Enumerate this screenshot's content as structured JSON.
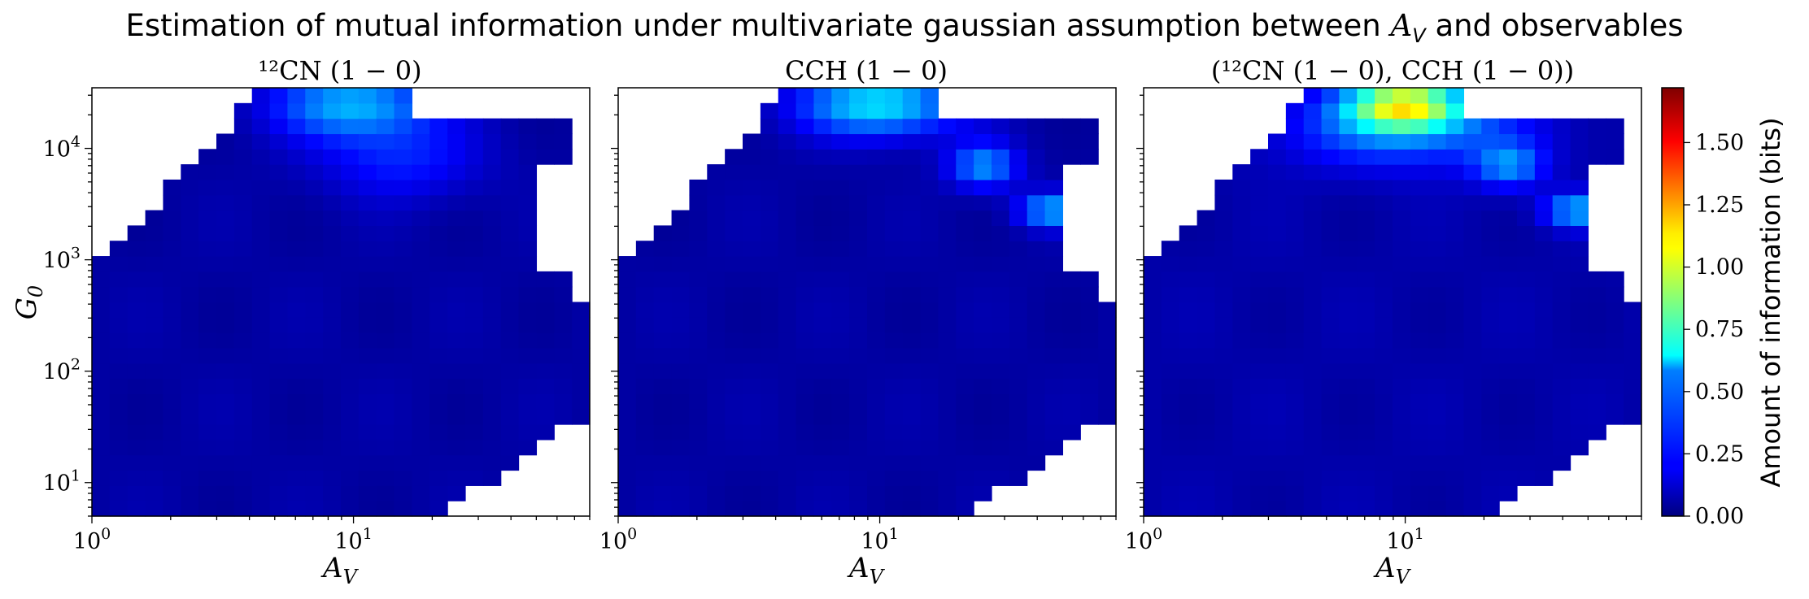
{
  "figure": {
    "suptitle_text": "Estimation of mutual information under multivariate gaussian assumption between",
    "suptitle_var": "A",
    "suptitle_var_sub": "V",
    "suptitle_tail": "and observables"
  },
  "chart_data": [
    {
      "type": "heatmap",
      "title": "¹²CN (1 − 0)",
      "xlabel": "A",
      "xlabel_sub": "V",
      "ylabel": "G",
      "ylabel_sub": "0",
      "x_scale": "log",
      "y_scale": "log",
      "xlim": [
        1,
        80
      ],
      "ylim": [
        5,
        35000
      ],
      "xticks": [
        {
          "value": 1,
          "base": "10",
          "exp": "0"
        },
        {
          "value": 10,
          "base": "10",
          "exp": "1"
        }
      ],
      "yticks": [
        {
          "value": 10,
          "base": "10",
          "exp": "1"
        },
        {
          "value": 100,
          "base": "10",
          "exp": "2"
        },
        {
          "value": 1000,
          "base": "10",
          "exp": "3"
        },
        {
          "value": 10000,
          "base": "10",
          "exp": "4"
        }
      ],
      "hot_spots": [
        {
          "x": 10,
          "y": 25000,
          "value": 0.45,
          "sx": 0.3,
          "sy": 0.3
        },
        {
          "x": 15,
          "y": 8000,
          "value": 0.2,
          "sx": 0.3,
          "sy": 0.35
        }
      ],
      "background_value": 0.06
    },
    {
      "type": "heatmap",
      "title": "CCH (1 − 0)",
      "xlabel": "A",
      "xlabel_sub": "V",
      "x_scale": "log",
      "y_scale": "log",
      "xlim": [
        1,
        80
      ],
      "ylim": [
        5,
        35000
      ],
      "xticks": [
        {
          "value": 1,
          "base": "10",
          "exp": "0"
        },
        {
          "value": 10,
          "base": "10",
          "exp": "1"
        }
      ],
      "hot_spots": [
        {
          "x": 10,
          "y": 25000,
          "value": 0.55,
          "sx": 0.3,
          "sy": 0.28
        },
        {
          "x": 25,
          "y": 7000,
          "value": 0.4,
          "sx": 0.13,
          "sy": 0.2
        },
        {
          "x": 45,
          "y": 2800,
          "value": 0.45,
          "sx": 0.12,
          "sy": 0.15
        }
      ],
      "background_value": 0.06
    },
    {
      "type": "heatmap",
      "title": "(¹²CN (1 − 0), CCH (1 − 0))",
      "xlabel": "A",
      "xlabel_sub": "V",
      "x_scale": "log",
      "y_scale": "log",
      "xlim": [
        1,
        80
      ],
      "ylim": [
        5,
        35000
      ],
      "xticks": [
        {
          "value": 1,
          "base": "10",
          "exp": "0"
        },
        {
          "value": 10,
          "base": "10",
          "exp": "1"
        }
      ],
      "hot_spots": [
        {
          "x": 10,
          "y": 25000,
          "value": 0.85,
          "sx": 0.22,
          "sy": 0.22
        },
        {
          "x": 10,
          "y": 15000,
          "value": 0.35,
          "sx": 0.45,
          "sy": 0.35
        },
        {
          "x": 25,
          "y": 7000,
          "value": 0.35,
          "sx": 0.13,
          "sy": 0.2
        },
        {
          "x": 45,
          "y": 2800,
          "value": 0.45,
          "sx": 0.12,
          "sy": 0.15
        }
      ],
      "background_value": 0.07
    }
  ],
  "colorbar": {
    "label": "Amount of information (bits)",
    "colormap": "jet",
    "vmin": 0.0,
    "vmax": 1.72,
    "ticks": [
      "0.00",
      "0.25",
      "0.50",
      "0.75",
      "1.00",
      "1.25",
      "1.50"
    ]
  }
}
